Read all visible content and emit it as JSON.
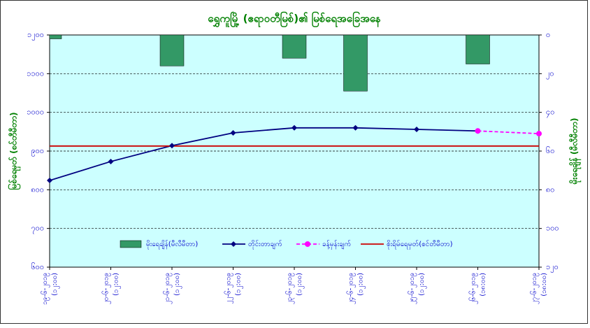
{
  "chart_data": {
    "type": "combo",
    "title": "ရွှေကူမြို့ (ဧရာဝတီမြစ်)၏ မြစ်ရေအခြေအနေ",
    "y_label": "မြစ်ရေမှတ် (စင်တီမီတာ)",
    "y2_label": "မိုးရေချိန် (မီလီမီတာ)",
    "categories": [
      "၁၉-၆-၂၀၁၉",
      "၂၀-၆-၂၀၁၉",
      "၂၁-၆-၂၀၁၉",
      "၂၂-၆-၂၀၁၉",
      "၂၃-၆-၂၀၁၉",
      "၂၄-၆-၂၀၁၉",
      "၂၅-၆-၂၀၁၉",
      "၂၆-၆-၂၀၁၉",
      "၂၇-၆-၂၀၁၉"
    ],
    "category_times": [
      "(၁၂:၀၀)",
      "(၁၂:၀၀)",
      "(၁၂:၀၀)",
      "(၁၂:၀၀)",
      "(၁၂:၀၀)",
      "(၁၂:၀၀)",
      "(၁၂:၀၀)",
      "(၁၈:၀၀)",
      "(၁၈:၀၀)"
    ],
    "ylim": [
      600,
      1200
    ],
    "yticks": [
      {
        "value": 600,
        "label": "၆၀၀"
      },
      {
        "value": 700,
        "label": "၇၀၀"
      },
      {
        "value": 800,
        "label": "၈၀၀"
      },
      {
        "value": 900,
        "label": "၉၀၀"
      },
      {
        "value": 1000,
        "label": "၁၀၀၀"
      },
      {
        "value": 1100,
        "label": "၁၁၀၀"
      },
      {
        "value": 1200,
        "label": "၁၂၀၀"
      }
    ],
    "y2lim": [
      120,
      0
    ],
    "y2ticks": [
      {
        "value": 0,
        "label": "၀"
      },
      {
        "value": 20,
        "label": "၂၀"
      },
      {
        "value": 40,
        "label": "၄၀"
      },
      {
        "value": 60,
        "label": "၆၀"
      },
      {
        "value": 80,
        "label": "၈၀"
      },
      {
        "value": 100,
        "label": "၁၀၀"
      },
      {
        "value": 120,
        "label": "၁၂၀"
      }
    ],
    "grid": true,
    "series": [
      {
        "name": "မိုးရေချိန်(မီလီမီတာ)",
        "kind": "bar",
        "axis": "y2",
        "color": "#339966",
        "values": [
          2,
          0,
          16,
          0,
          12,
          29,
          0,
          15,
          0
        ]
      },
      {
        "name": "တိုင်းတာချက်",
        "kind": "line",
        "color": "#000080",
        "values": [
          824,
          873,
          914,
          947,
          960,
          960,
          956,
          952,
          null
        ]
      },
      {
        "name": "ခန့်မှန်းချက်",
        "kind": "dashed",
        "color": "#ff00ff",
        "values": [
          null,
          null,
          null,
          null,
          null,
          null,
          null,
          952,
          945
        ]
      },
      {
        "name": "စိုးရိမ်ရေမှတ်(စင်တီမီတာ)",
        "kind": "plain",
        "color": "#cc0000",
        "values": [
          913,
          913,
          913,
          913,
          913,
          913,
          913,
          913,
          913
        ]
      }
    ]
  }
}
